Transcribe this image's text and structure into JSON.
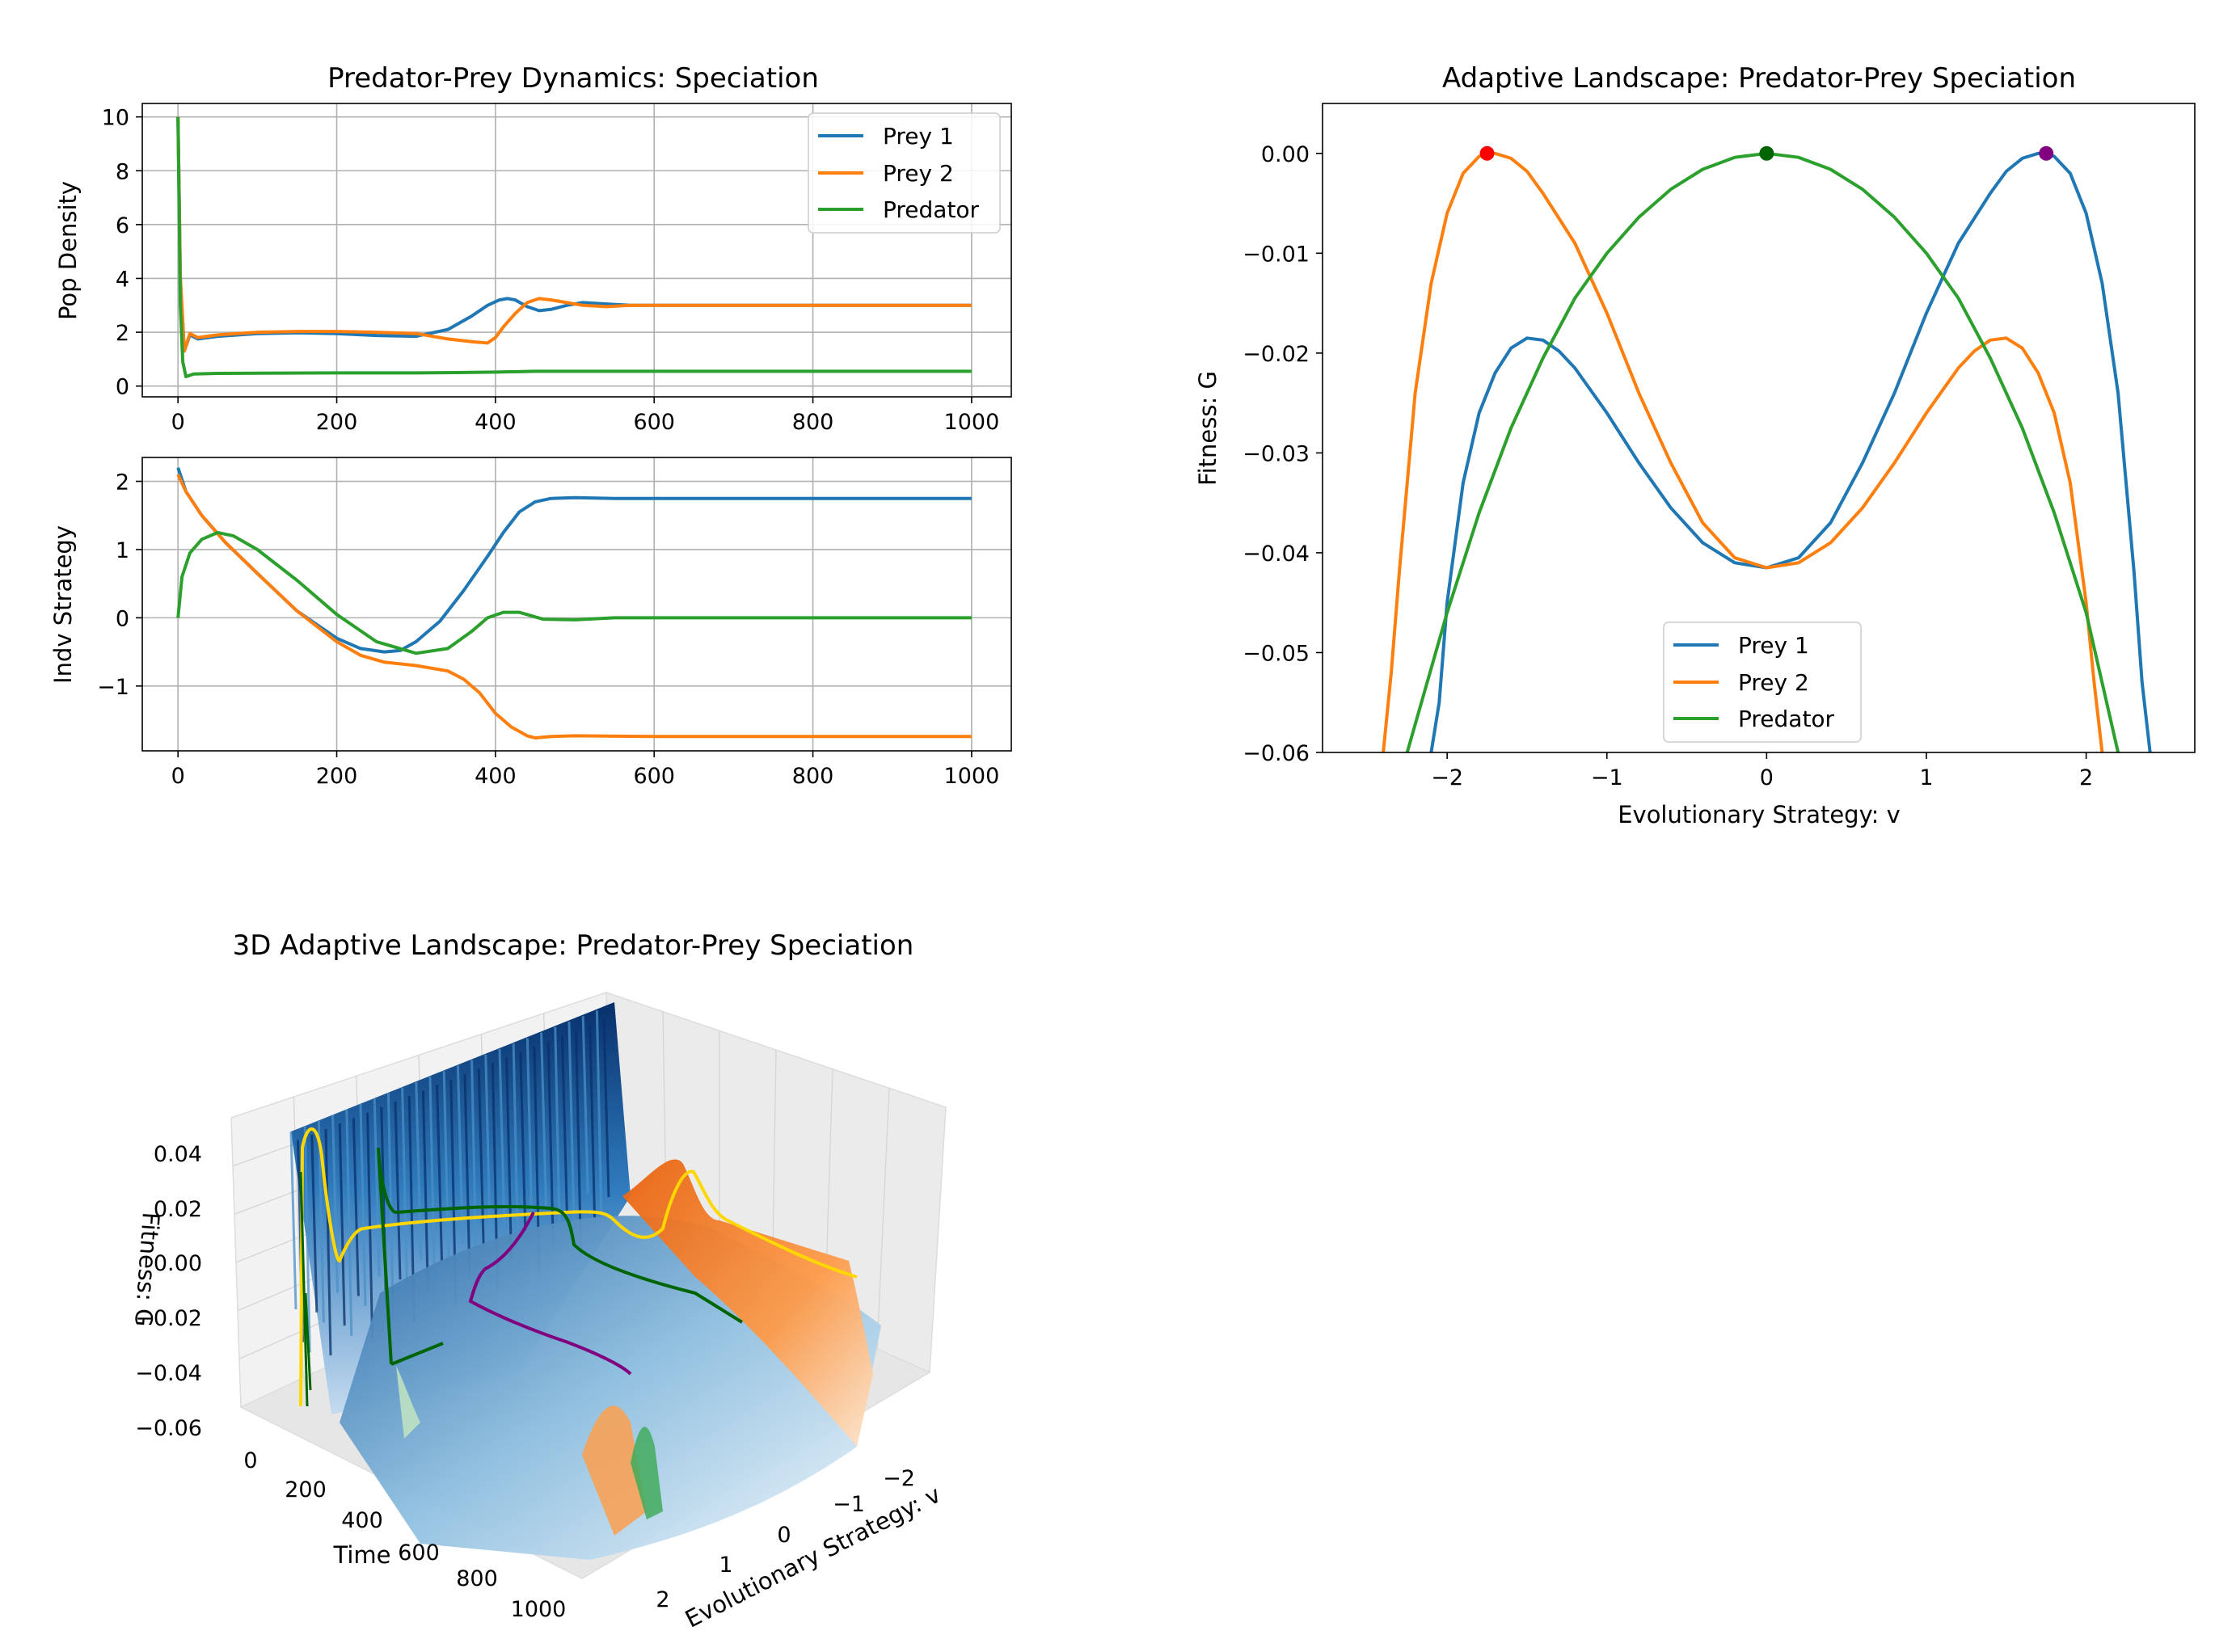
{
  "colors": {
    "prey1": "#1f77b4",
    "prey2": "#ff7f0e",
    "predator": "#2ca02c",
    "marker_prey2": "#ff0000",
    "marker_predator": "#006400",
    "marker_prey1": "#800080",
    "traj_yellow": "#ffd700",
    "traj_green": "#006400",
    "traj_purple": "#800080"
  },
  "chart_data": [
    {
      "type": "line",
      "title": "Predator-Prey Dynamics: Speciation",
      "xlabel": "",
      "ylabel": "Pop Density",
      "xlim": [
        -45,
        1050
      ],
      "ylim": [
        -0.4,
        10.5
      ],
      "xticks": [
        "0",
        "200",
        "400",
        "600",
        "800",
        "1000"
      ],
      "yticks": [
        "0",
        "2",
        "4",
        "6",
        "8",
        "10"
      ],
      "grid": true,
      "legend": "upper right",
      "series": [
        {
          "name": "Prey 1",
          "x": [
            0,
            3,
            8,
            15,
            25,
            50,
            100,
            150,
            200,
            250,
            300,
            340,
            370,
            390,
            405,
            415,
            425,
            440,
            455,
            470,
            490,
            510,
            540,
            570,
            600,
            700,
            800,
            900,
            1000
          ],
          "y": [
            10,
            4,
            1.3,
            1.9,
            1.75,
            1.85,
            1.95,
            1.98,
            1.95,
            1.88,
            1.85,
            2.1,
            2.6,
            3.0,
            3.2,
            3.25,
            3.2,
            2.95,
            2.8,
            2.85,
            3.0,
            3.1,
            3.05,
            3.0,
            3.0,
            3.0,
            3.0,
            3.0,
            3.0
          ]
        },
        {
          "name": "Prey 2",
          "x": [
            0,
            3,
            8,
            15,
            25,
            50,
            100,
            150,
            200,
            250,
            300,
            340,
            370,
            390,
            400,
            410,
            425,
            440,
            455,
            470,
            490,
            510,
            540,
            570,
            600,
            700,
            800,
            900,
            1000
          ],
          "y": [
            10,
            4,
            1.3,
            1.95,
            1.8,
            1.9,
            2.0,
            2.03,
            2.03,
            2.0,
            1.95,
            1.75,
            1.65,
            1.6,
            1.8,
            2.2,
            2.7,
            3.1,
            3.25,
            3.2,
            3.1,
            3.0,
            2.95,
            3.0,
            3.0,
            3.0,
            3.0,
            3.0,
            3.0
          ]
        },
        {
          "name": "Predator",
          "x": [
            0,
            3,
            6,
            10,
            20,
            50,
            100,
            200,
            300,
            350,
            400,
            450,
            500,
            600,
            700,
            800,
            900,
            1000
          ],
          "y": [
            10,
            3,
            0.9,
            0.35,
            0.45,
            0.47,
            0.48,
            0.49,
            0.49,
            0.5,
            0.52,
            0.55,
            0.55,
            0.55,
            0.55,
            0.55,
            0.55,
            0.55
          ]
        }
      ]
    },
    {
      "type": "line",
      "title": "",
      "xlabel": "",
      "ylabel": "Indv Strategy",
      "xlim": [
        -45,
        1050
      ],
      "ylim": [
        -1.95,
        2.35
      ],
      "xticks": [
        "0",
        "200",
        "400",
        "600",
        "800",
        "1000"
      ],
      "yticks": [
        "−1",
        "0",
        "1",
        "2"
      ],
      "grid": true,
      "series": [
        {
          "name": "Prey 1",
          "x": [
            0,
            10,
            30,
            60,
            100,
            150,
            200,
            230,
            260,
            280,
            300,
            330,
            360,
            390,
            410,
            430,
            450,
            470,
            500,
            550,
            600,
            700,
            800,
            900,
            1000
          ],
          "y": [
            2.2,
            1.85,
            1.5,
            1.1,
            0.65,
            0.1,
            -0.3,
            -0.45,
            -0.5,
            -0.48,
            -0.35,
            -0.05,
            0.4,
            0.9,
            1.25,
            1.55,
            1.7,
            1.75,
            1.76,
            1.75,
            1.75,
            1.75,
            1.75,
            1.75,
            1.75
          ]
        },
        {
          "name": "Prey 2",
          "x": [
            0,
            10,
            30,
            60,
            100,
            150,
            200,
            230,
            260,
            300,
            340,
            360,
            380,
            400,
            420,
            440,
            450,
            470,
            500,
            600,
            700,
            800,
            900,
            1000
          ],
          "y": [
            2.1,
            1.85,
            1.5,
            1.1,
            0.65,
            0.1,
            -0.35,
            -0.55,
            -0.65,
            -0.7,
            -0.78,
            -0.9,
            -1.1,
            -1.4,
            -1.6,
            -1.73,
            -1.76,
            -1.74,
            -1.73,
            -1.74,
            -1.74,
            -1.74,
            -1.74,
            -1.74
          ]
        },
        {
          "name": "Predator",
          "x": [
            0,
            5,
            15,
            30,
            50,
            70,
            100,
            150,
            200,
            250,
            300,
            340,
            370,
            390,
            410,
            430,
            460,
            500,
            550,
            600,
            700,
            800,
            900,
            1000
          ],
          "y": [
            0,
            0.6,
            0.95,
            1.15,
            1.25,
            1.2,
            1.0,
            0.55,
            0.05,
            -0.35,
            -0.52,
            -0.45,
            -0.2,
            0.0,
            0.08,
            0.08,
            -0.02,
            -0.03,
            0.0,
            0.0,
            0.0,
            0.0,
            0.0,
            0.0
          ]
        }
      ]
    },
    {
      "type": "line",
      "title": "Adaptive Landscape: Predator-Prey Speciation",
      "xlabel": "Evolutionary Strategy: v",
      "ylabel": "Fitness: G",
      "xlim": [
        -2.78,
        2.68
      ],
      "ylim": [
        -0.06,
        0.005
      ],
      "xticks": [
        "−2",
        "−1",
        "0",
        "1",
        "2"
      ],
      "yticks": [
        "0.00",
        "−0.01",
        "−0.02",
        "−0.03",
        "−0.04",
        "−0.05",
        "−0.06"
      ],
      "grid": false,
      "legend": "lower center",
      "series": [
        {
          "name": "Prey 1",
          "x": [
            -2.1,
            -2.05,
            -2.0,
            -1.9,
            -1.8,
            -1.7,
            -1.6,
            -1.5,
            -1.4,
            -1.3,
            -1.2,
            -1.0,
            -0.8,
            -0.6,
            -0.4,
            -0.2,
            0.0,
            0.2,
            0.4,
            0.6,
            0.8,
            1.0,
            1.2,
            1.4,
            1.5,
            1.6,
            1.7,
            1.75,
            1.8,
            1.9,
            2.0,
            2.1,
            2.2,
            2.3,
            2.35,
            2.4
          ],
          "y": [
            -0.06,
            -0.055,
            -0.045,
            -0.033,
            -0.026,
            -0.022,
            -0.0195,
            -0.0185,
            -0.0187,
            -0.0198,
            -0.0215,
            -0.026,
            -0.031,
            -0.0355,
            -0.039,
            -0.041,
            -0.0415,
            -0.0405,
            -0.037,
            -0.031,
            -0.024,
            -0.016,
            -0.009,
            -0.004,
            -0.0018,
            -0.0005,
            0.0,
            0.0,
            -0.0003,
            -0.002,
            -0.006,
            -0.013,
            -0.024,
            -0.042,
            -0.053,
            -0.06
          ]
        },
        {
          "name": "Prey 2",
          "x": [
            -2.4,
            -2.35,
            -2.3,
            -2.2,
            -2.1,
            -2.0,
            -1.9,
            -1.8,
            -1.75,
            -1.7,
            -1.6,
            -1.5,
            -1.4,
            -1.2,
            -1.0,
            -0.8,
            -0.6,
            -0.4,
            -0.2,
            0.0,
            0.2,
            0.4,
            0.6,
            0.8,
            1.0,
            1.2,
            1.3,
            1.4,
            1.5,
            1.6,
            1.7,
            1.8,
            1.9,
            2.0,
            2.05,
            2.1
          ],
          "y": [
            -0.06,
            -0.052,
            -0.042,
            -0.024,
            -0.013,
            -0.006,
            -0.002,
            -0.0003,
            0.0,
            0.0,
            -0.0005,
            -0.0018,
            -0.004,
            -0.009,
            -0.016,
            -0.024,
            -0.031,
            -0.037,
            -0.0405,
            -0.0415,
            -0.041,
            -0.039,
            -0.0355,
            -0.031,
            -0.026,
            -0.0215,
            -0.0198,
            -0.0187,
            -0.0185,
            -0.0195,
            -0.022,
            -0.026,
            -0.033,
            -0.045,
            -0.053,
            -0.06
          ]
        },
        {
          "name": "Predator",
          "x": [
            -2.25,
            -2.0,
            -1.8,
            -1.6,
            -1.4,
            -1.2,
            -1.0,
            -0.8,
            -0.6,
            -0.4,
            -0.2,
            0.0,
            0.2,
            0.4,
            0.6,
            0.8,
            1.0,
            1.2,
            1.4,
            1.6,
            1.8,
            2.0,
            2.2
          ],
          "y": [
            -0.06,
            -0.046,
            -0.036,
            -0.0275,
            -0.0205,
            -0.0145,
            -0.01,
            -0.0064,
            -0.0036,
            -0.0016,
            -0.0004,
            0.0,
            -0.0004,
            -0.0016,
            -0.0036,
            -0.0064,
            -0.01,
            -0.0145,
            -0.0205,
            -0.0275,
            -0.036,
            -0.046,
            -0.06
          ]
        }
      ],
      "markers": [
        {
          "name": "Prey 2",
          "x": -1.75,
          "y": 0.0,
          "color": "#ff0000"
        },
        {
          "name": "Predator",
          "x": 0.0,
          "y": 0.0,
          "color": "#006400"
        },
        {
          "name": "Prey 1",
          "x": 1.75,
          "y": 0.0,
          "color": "#800080"
        }
      ]
    },
    {
      "type": "surface3d",
      "title": "3D Adaptive Landscape: Predator-Prey Speciation",
      "xlabel": "Time",
      "ylabel": "Evolutionary Strategy: v",
      "zlabel": "Fitness: G",
      "xticks": [
        "0",
        "200",
        "400",
        "600",
        "800",
        "1000"
      ],
      "yticks": [
        "−2",
        "−1",
        "0",
        "1",
        "2"
      ],
      "zticks": [
        "0.04",
        "0.02",
        "0.00",
        "−0.02",
        "−0.04",
        "−0.06"
      ],
      "zlim": [
        -0.06,
        0.05
      ]
    }
  ]
}
